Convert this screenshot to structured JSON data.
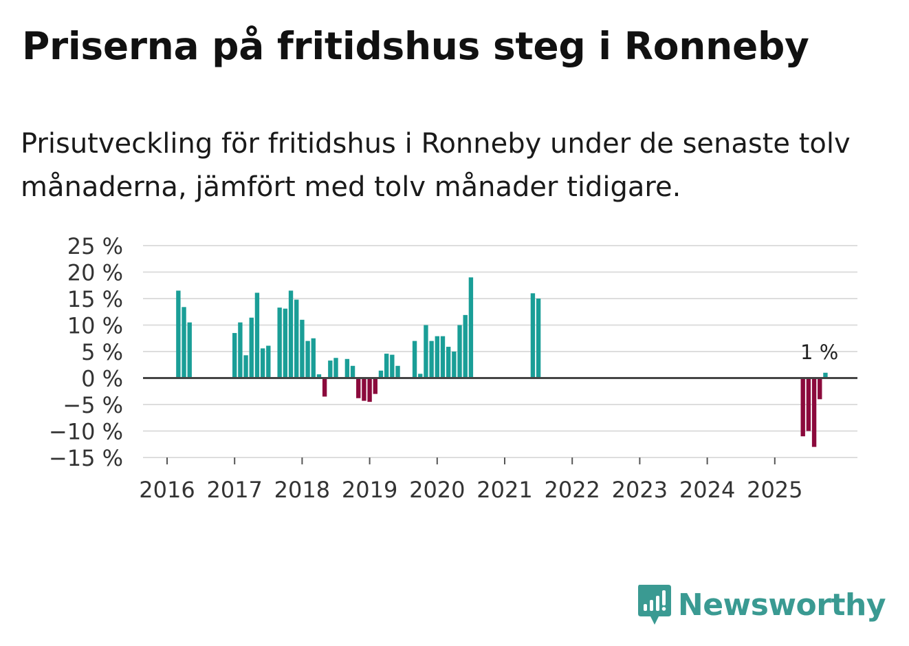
{
  "title": "Priserna på fritidshus steg i Ronneby",
  "subtitle": "Prisutveckling för fritidshus i Ronneby under de senaste tolv månaderna, jämfört med tolv månader tidigare.",
  "brand": {
    "name": "Newsworthy",
    "icon": "newsworthy-logo-icon",
    "color": "#3a9a92"
  },
  "chart_data": {
    "type": "bar",
    "x_unit": "month",
    "ylim": [
      -15,
      25
    ],
    "yticks": [
      25,
      20,
      15,
      10,
      5,
      0,
      -5,
      -10,
      -15
    ],
    "ytick_labels": [
      "25 %",
      "20 %",
      "15 %",
      "10 %",
      "5 %",
      "0 %",
      "−5 %",
      "−10 %",
      "−15 %"
    ],
    "xticks": [
      "2016",
      "2017",
      "2018",
      "2019",
      "2020",
      "2021",
      "2022",
      "2023",
      "2024",
      "2025"
    ],
    "grid": true,
    "colors": {
      "positive": "#1a9e97",
      "negative": "#8b0a3c",
      "zero_line": "#444444",
      "grid": "#dddddd"
    },
    "annotation": {
      "date": "2025-09",
      "text": "1 %"
    },
    "points": [
      {
        "date": "2016-03",
        "value": 16.5
      },
      {
        "date": "2016-04",
        "value": 13.4
      },
      {
        "date": "2016-05",
        "value": 10.5
      },
      {
        "date": "2017-01",
        "value": 8.5
      },
      {
        "date": "2017-02",
        "value": 10.5
      },
      {
        "date": "2017-03",
        "value": 4.3
      },
      {
        "date": "2017-04",
        "value": 11.4
      },
      {
        "date": "2017-05",
        "value": 16.1
      },
      {
        "date": "2017-06",
        "value": 5.6
      },
      {
        "date": "2017-07",
        "value": 6.1
      },
      {
        "date": "2017-09",
        "value": 13.3
      },
      {
        "date": "2017-10",
        "value": 13.1
      },
      {
        "date": "2017-11",
        "value": 16.5
      },
      {
        "date": "2017-12",
        "value": 14.8
      },
      {
        "date": "2018-01",
        "value": 11.0
      },
      {
        "date": "2018-02",
        "value": 7.0
      },
      {
        "date": "2018-03",
        "value": 7.5
      },
      {
        "date": "2018-04",
        "value": 0.7
      },
      {
        "date": "2018-05",
        "value": -3.5
      },
      {
        "date": "2018-06",
        "value": 3.3
      },
      {
        "date": "2018-07",
        "value": 3.8
      },
      {
        "date": "2018-09",
        "value": 3.6
      },
      {
        "date": "2018-10",
        "value": 2.3
      },
      {
        "date": "2018-11",
        "value": -3.8
      },
      {
        "date": "2018-12",
        "value": -4.3
      },
      {
        "date": "2019-01",
        "value": -4.5
      },
      {
        "date": "2019-02",
        "value": -3.0
      },
      {
        "date": "2019-03",
        "value": 1.4
      },
      {
        "date": "2019-04",
        "value": 4.6
      },
      {
        "date": "2019-05",
        "value": 4.4
      },
      {
        "date": "2019-06",
        "value": 2.3
      },
      {
        "date": "2019-09",
        "value": 7.0
      },
      {
        "date": "2019-10",
        "value": 0.8
      },
      {
        "date": "2019-11",
        "value": 10.0
      },
      {
        "date": "2019-12",
        "value": 7.0
      },
      {
        "date": "2020-01",
        "value": 7.9
      },
      {
        "date": "2020-02",
        "value": 7.9
      },
      {
        "date": "2020-03",
        "value": 5.9
      },
      {
        "date": "2020-04",
        "value": 5.0
      },
      {
        "date": "2020-05",
        "value": 10.0
      },
      {
        "date": "2020-06",
        "value": 11.9
      },
      {
        "date": "2020-07",
        "value": 19.0
      },
      {
        "date": "2021-06",
        "value": 16.0
      },
      {
        "date": "2021-07",
        "value": 15.0
      },
      {
        "date": "2025-06",
        "value": -11.0
      },
      {
        "date": "2025-07",
        "value": -10.0
      },
      {
        "date": "2025-08",
        "value": -13.0
      },
      {
        "date": "2025-09",
        "value": -4.0
      },
      {
        "date": "2025-10",
        "value": 1.0
      }
    ]
  }
}
